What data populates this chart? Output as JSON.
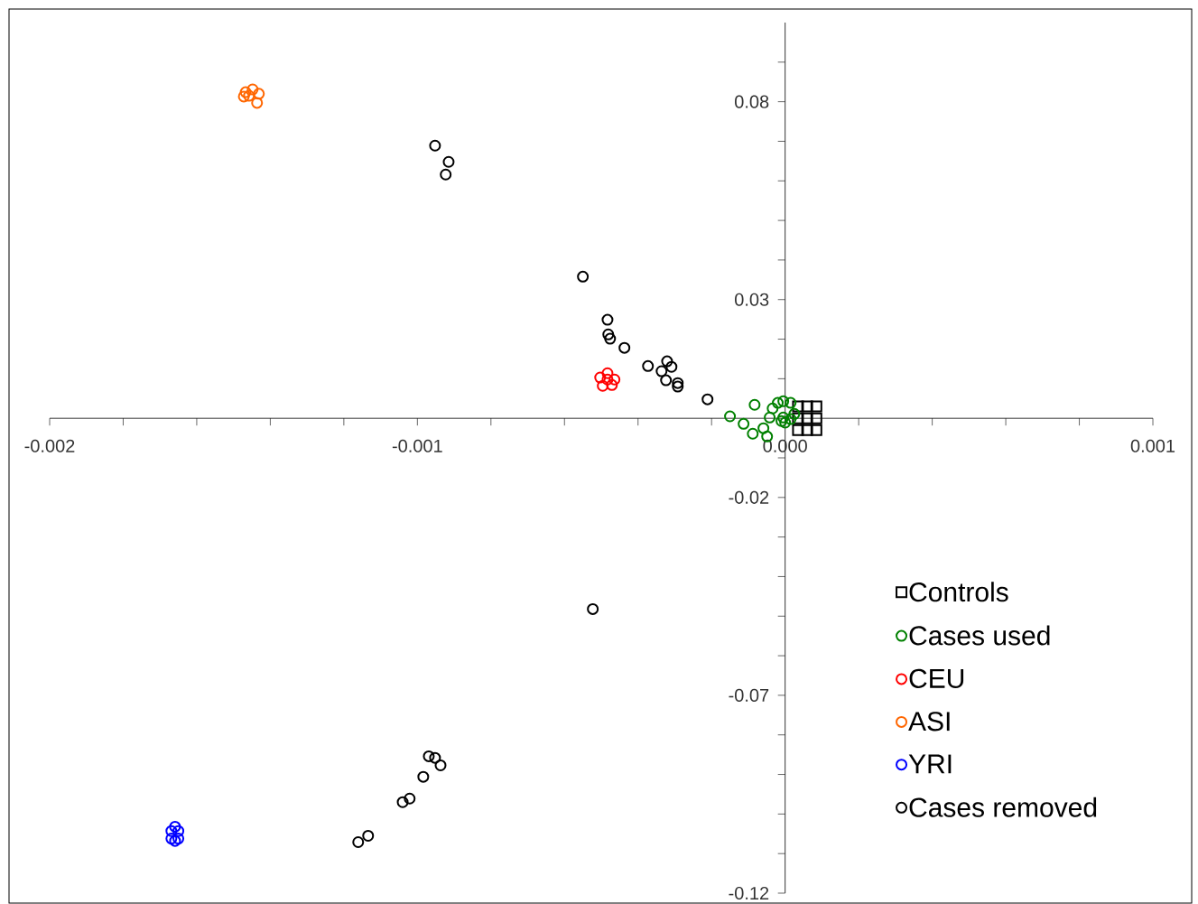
{
  "chart_data": {
    "type": "scatter",
    "xlim": [
      -0.002,
      0.001
    ],
    "ylim": [
      -0.12,
      0.1
    ],
    "xticks": [
      -0.002,
      {
        "value": -0.0018,
        "label": null
      },
      {
        "value": -0.0016,
        "label": null
      },
      {
        "value": -0.0014,
        "label": null
      },
      {
        "value": -0.0012,
        "label": null
      },
      -0.001,
      {
        "value": -0.0008,
        "label": null
      },
      {
        "value": -0.0006,
        "label": null
      },
      {
        "value": -0.0004,
        "label": null
      },
      {
        "value": -0.0002,
        "label": null
      },
      {
        "value": 0,
        "label": "0.000"
      },
      {
        "value": 0.0002,
        "label": null
      },
      {
        "value": 0.0004,
        "label": null
      },
      {
        "value": 0.0006,
        "label": null
      },
      {
        "value": 0.0008,
        "label": null
      },
      0.001
    ],
    "yticks": [
      {
        "value": 0.09,
        "label": null
      },
      0.08,
      {
        "value": 0.07,
        "label": null
      },
      {
        "value": 0.06,
        "label": null
      },
      {
        "value": 0.05,
        "label": null
      },
      {
        "value": 0.04,
        "label": null
      },
      0.03,
      {
        "value": 0.02,
        "label": null
      },
      {
        "value": 0.01,
        "label": null
      },
      {
        "value": -0.01,
        "label": null
      },
      -0.02,
      {
        "value": -0.03,
        "label": null
      },
      {
        "value": -0.04,
        "label": null
      },
      {
        "value": -0.05,
        "label": null
      },
      {
        "value": -0.06,
        "label": null
      },
      -0.07,
      {
        "value": -0.08,
        "label": null
      },
      {
        "value": -0.09,
        "label": null
      },
      {
        "value": -0.1,
        "label": null
      },
      {
        "value": -0.11,
        "label": null
      },
      -0.12
    ],
    "legend": "bottom right",
    "series": [
      {
        "name": "Controls",
        "color": "#000000",
        "marker": "square",
        "x": [
          3.5e-05,
          6e-05,
          8.5e-05,
          3.5e-05,
          6e-05,
          8.5e-05,
          3.5e-05,
          6e-05,
          8.5e-05
        ],
        "values": [
          0.003,
          0.003,
          0.003,
          0,
          0,
          0,
          -0.003,
          -0.003,
          -0.003
        ]
      },
      {
        "name": "Cases used",
        "color": "#008000",
        "marker": "circle",
        "x": [
          -0.00015,
          -8.3e-05,
          -0.000113,
          -8.8e-05,
          -5.9e-05,
          -4.9e-05,
          -4.2e-05,
          -3.4e-05,
          -2e-05,
          -5e-06,
          1.5e-05,
          -5e-06,
          1.5e-05,
          0,
          2.5e-05,
          -1e-05
        ],
        "values": [
          0.0005,
          0.0034,
          -0.0014,
          -0.0039,
          -0.0025,
          -0.0046,
          0.0002,
          0.0025,
          0.0039,
          0.0043,
          0.0039,
          0.0002,
          -0.0002,
          -0.0011,
          0.0011,
          -0.0007
        ]
      },
      {
        "name": "CEU",
        "color": "#ff0000",
        "marker": "circle",
        "x": [
          -0.000503,
          -0.000483,
          -0.000464,
          -0.000496,
          -0.000471,
          -0.000483
        ],
        "values": [
          0.0103,
          0.0114,
          0.0098,
          0.0082,
          0.0084,
          0.0098
        ]
      },
      {
        "name": "ASI",
        "color": "#ff6600",
        "marker": "circle",
        "x": [
          -0.001467,
          -0.001448,
          -0.001431,
          -0.001436,
          -0.001472,
          -0.001458
        ],
        "values": [
          0.0824,
          0.0831,
          0.082,
          0.0797,
          0.0813,
          0.0815
        ]
      },
      {
        "name": "YRI",
        "color": "#0000ff",
        "marker": "circle",
        "x": [
          -0.001659,
          -0.001669,
          -0.00165,
          -0.001669,
          -0.00165,
          -0.001659
        ],
        "values": [
          -0.1032,
          -0.1043,
          -0.1043,
          -0.1062,
          -0.1062,
          -0.1068
        ]
      },
      {
        "name": "Cases removed",
        "color": "#000000",
        "marker": "circle",
        "x": [
          -0.000952,
          -0.000915,
          -0.000923,
          -0.00055,
          -0.000483,
          -0.000481,
          -0.000476,
          -0.000437,
          -0.000373,
          -0.000336,
          -0.000321,
          -0.000309,
          -0.000324,
          -0.000292,
          -0.000292,
          -0.000211,
          -0.000523,
          -0.000969,
          -0.000952,
          -0.000937,
          -0.000984,
          -0.00104,
          -0.001021,
          -0.001161,
          -0.001134
        ],
        "values": [
          0.0689,
          0.0648,
          0.0616,
          0.0358,
          0.0249,
          0.0212,
          0.0201,
          0.0178,
          0.0132,
          0.0119,
          0.0144,
          0.013,
          0.0096,
          0.0089,
          0.008,
          0.0048,
          -0.0482,
          -0.0854,
          -0.0858,
          -0.0877,
          -0.0906,
          -0.097,
          -0.0961,
          -0.1071,
          -0.1055
        ]
      }
    ]
  }
}
